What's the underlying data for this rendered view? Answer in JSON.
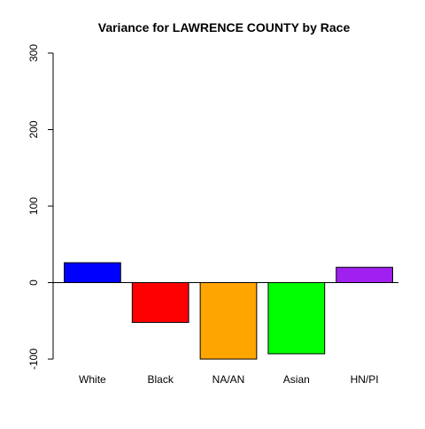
{
  "chart_data": {
    "type": "bar",
    "title": "Variance for LAWRENCE COUNTY by Race",
    "xlabel": "",
    "ylabel": "",
    "categories": [
      "White",
      "Black",
      "NA/AN",
      "Asian",
      "HN/PI"
    ],
    "values": [
      26,
      -52,
      -100,
      -93,
      20
    ],
    "colors": [
      "#0000ff",
      "#ff0000",
      "#ffa500",
      "#00ff00",
      "#a020f0"
    ],
    "ylim": [
      -100,
      300
    ],
    "yticks": [
      -100,
      0,
      100,
      200,
      300
    ],
    "ytick_labels": [
      "-100",
      "0",
      "100",
      "200",
      "300"
    ],
    "baseline": 0,
    "grid": false,
    "legend": "none"
  }
}
